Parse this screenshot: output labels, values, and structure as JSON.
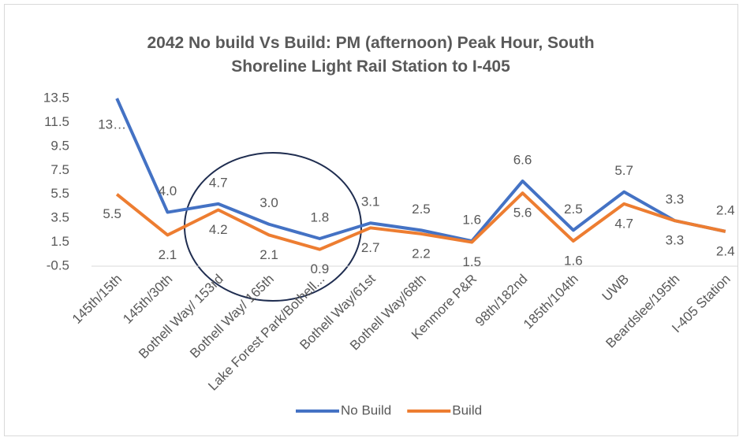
{
  "chart_data": {
    "type": "line",
    "title": "2042 No build Vs Build: PM (afternoon) Peak Hour, South Shoreline Light Rail Station to I-405",
    "categories": [
      "145th/15th",
      "145th/30th",
      "Bothell Way/ 153rd",
      "Bothell Way/ 165th",
      "Lake Forest Park/Bothell...",
      "Bothell Way/61st",
      "Bothell Way/68th",
      "Kenmore P&R",
      "98th/182nd",
      "185th/104th",
      "UWB",
      "Beardslee/195th",
      "I-405 Station"
    ],
    "series": [
      {
        "name": "No Build",
        "color": "#4472c4",
        "values": [
          13.5,
          4.0,
          4.7,
          3.0,
          1.8,
          3.1,
          2.5,
          1.6,
          6.6,
          2.5,
          5.7,
          3.3,
          2.4
        ],
        "value_labels": [
          "13…",
          "4.0",
          "4.7",
          "3.0",
          "1.8",
          "3.1",
          "2.5",
          "1.6",
          "6.6",
          "2.5",
          "5.7",
          "3.3",
          "2.4"
        ]
      },
      {
        "name": "Build",
        "color": "#ed7d31",
        "values": [
          5.5,
          2.1,
          4.2,
          2.1,
          0.9,
          2.7,
          2.2,
          1.5,
          5.6,
          1.6,
          4.7,
          3.3,
          2.4
        ],
        "value_labels": [
          "5.5",
          "2.1",
          "4.2",
          "2.1",
          "0.9",
          "2.7",
          "2.2",
          "1.5",
          "5.6",
          "1.6",
          "4.7",
          "3.3",
          "2.4"
        ]
      }
    ],
    "ylim": [
      -0.5,
      13.5
    ],
    "yticks": [
      -0.5,
      1.5,
      3.5,
      5.5,
      7.5,
      9.5,
      11.5,
      13.5
    ],
    "grid": false,
    "legend": "bottom"
  }
}
